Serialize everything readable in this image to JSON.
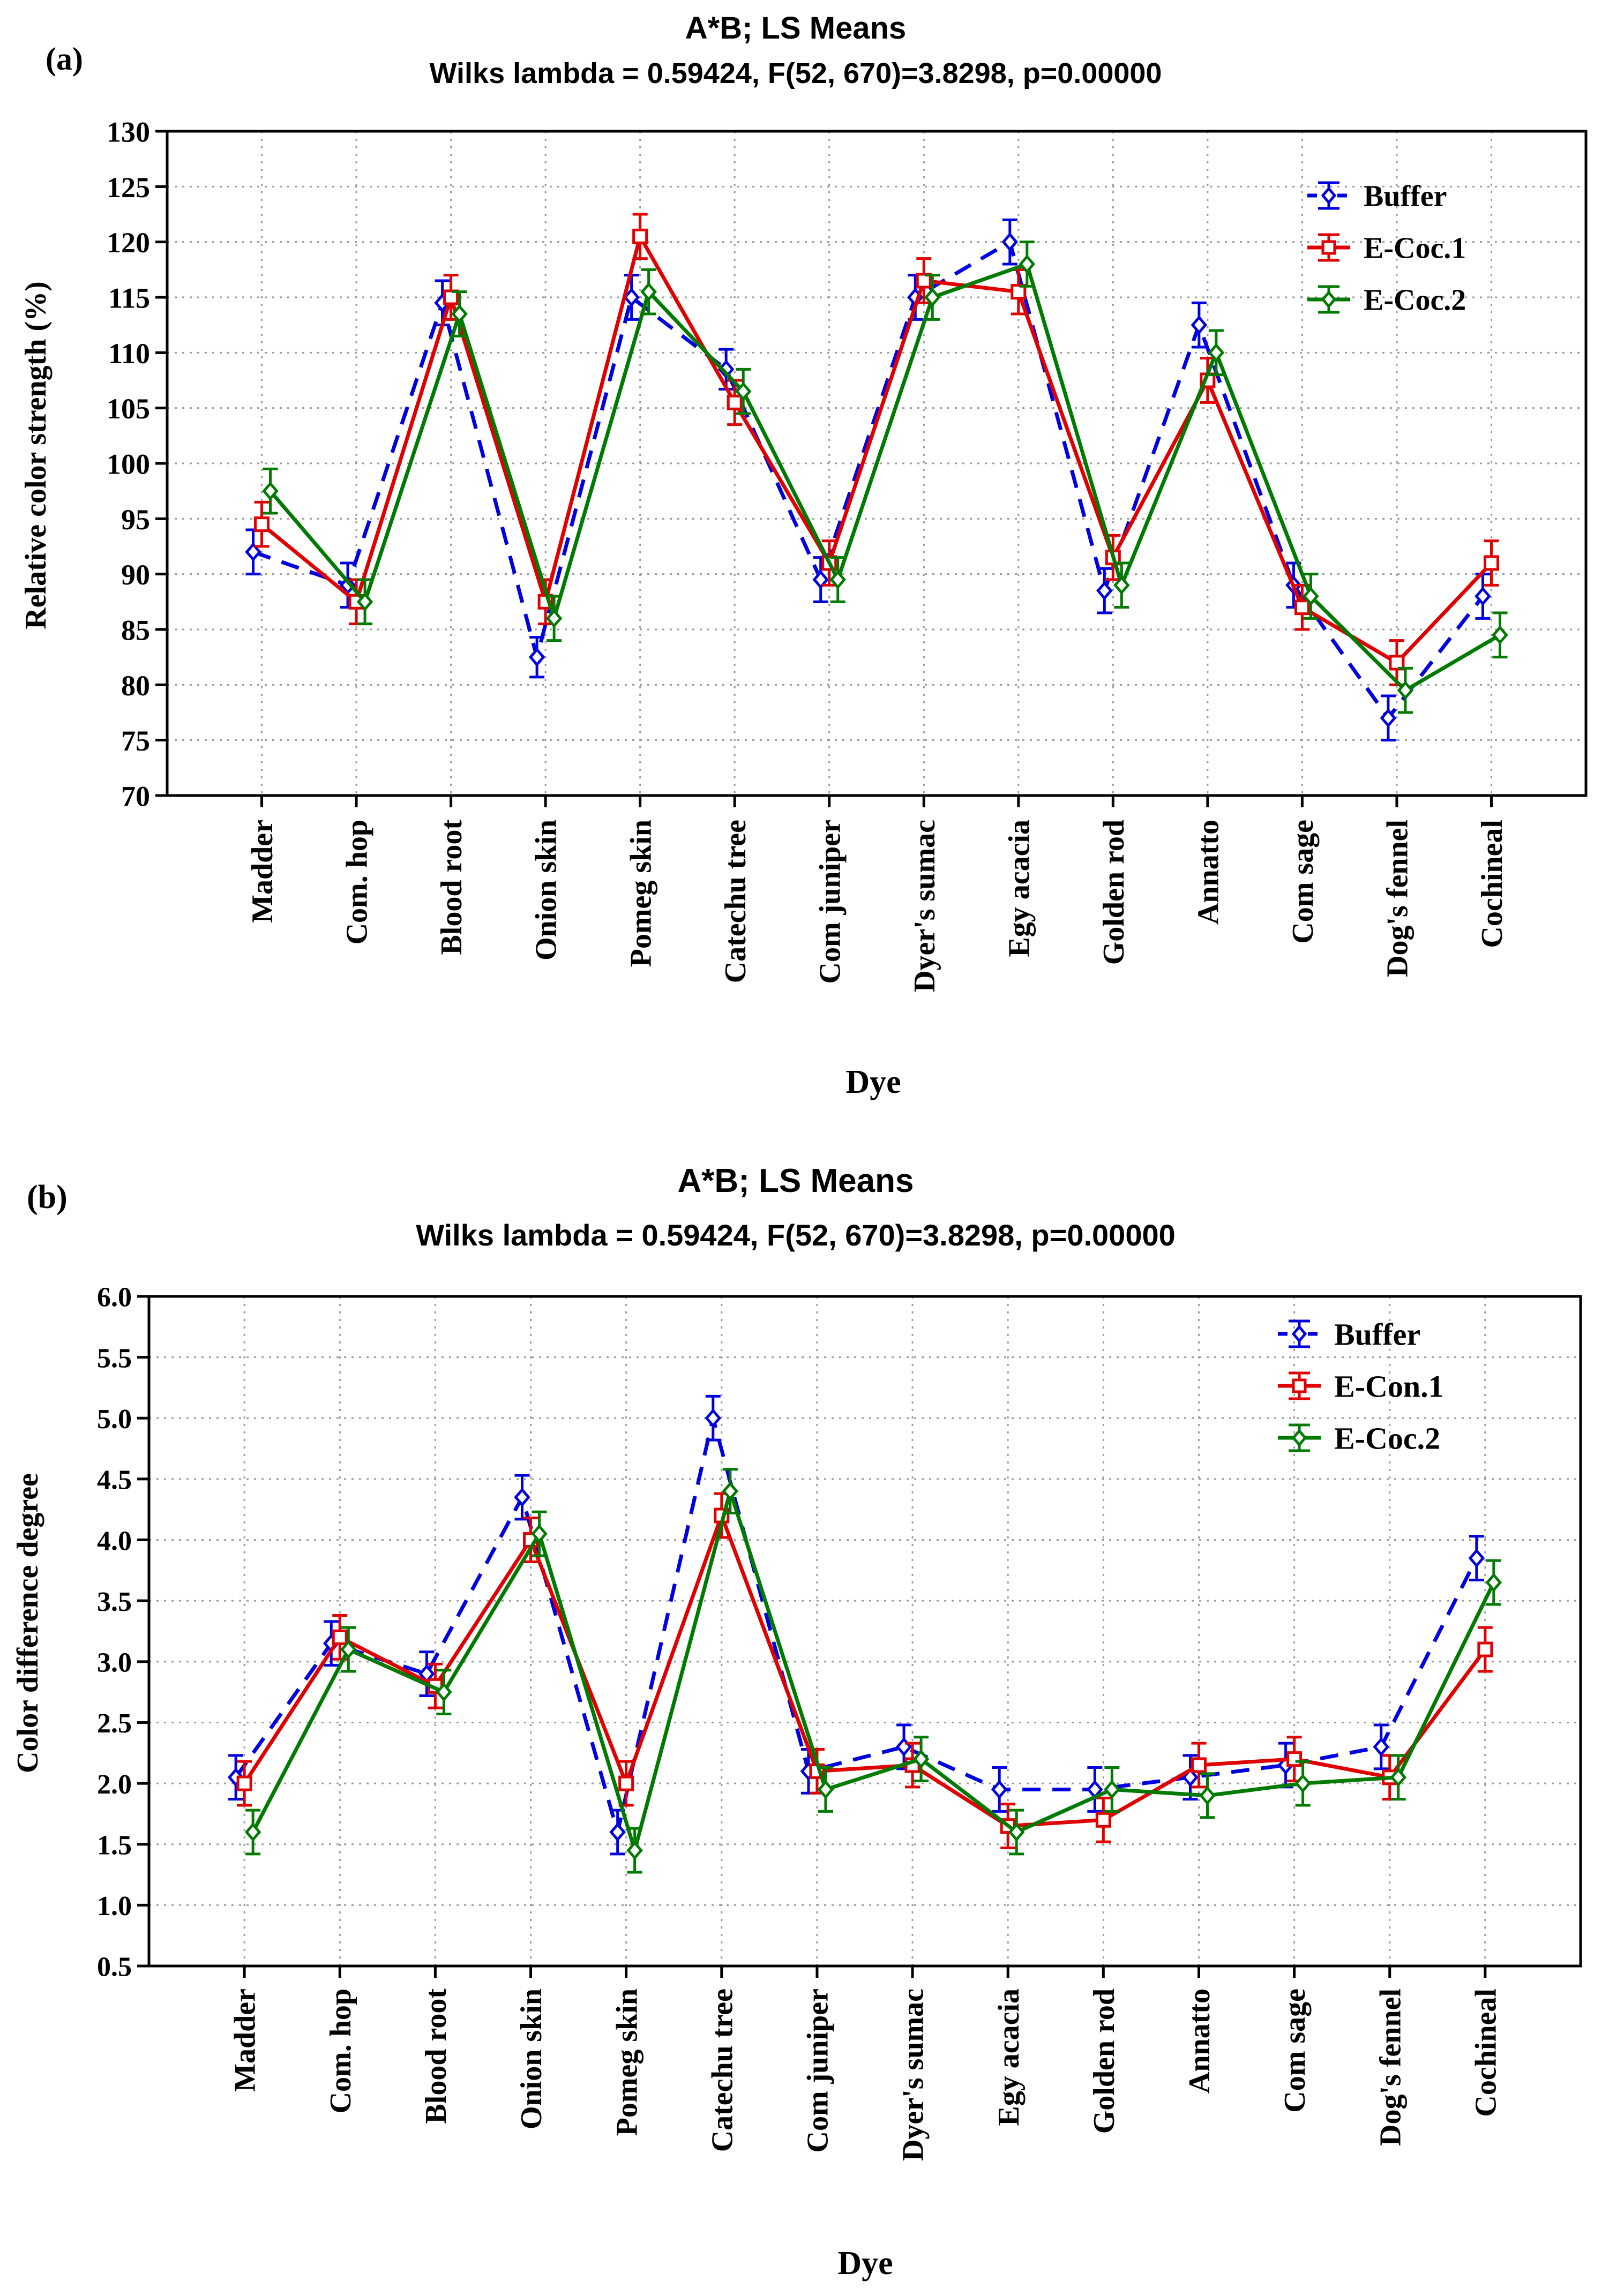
{
  "colors": {
    "buffer": "#0000e0",
    "e_coc1": "#e00000",
    "e_coc2": "#007a00",
    "grid": "#9a9a9a",
    "axis": "#000000"
  },
  "chart_data": [
    {
      "type": "line",
      "panel_label": "(a)",
      "title": "A*B; LS Means",
      "subtitle": "Wilks lambda = 0.59424, F(52, 670)=3.8298, p=0.00000",
      "xlabel": "Dye",
      "ylabel": "Relative color strength (%)",
      "ylim": [
        70,
        130
      ],
      "yticks": [
        70,
        75,
        80,
        85,
        90,
        95,
        100,
        105,
        110,
        115,
        120,
        125,
        130
      ],
      "yticklabels": [
        "70",
        "75",
        "80",
        "85",
        "90",
        "95",
        "100",
        "105",
        "110",
        "115",
        "120",
        "125",
        "130"
      ],
      "grid": true,
      "legend_position": "top-right",
      "categories": [
        "Madder",
        "Com. hop",
        "Blood root",
        "Onion skin",
        "Pomeg skin",
        "Catechu tree",
        "Com juniper",
        "Dyer's sumac",
        "Egy acacia",
        "Golden rod",
        "Annatto",
        "Com sage",
        "Dog's fennel",
        "Cochineal"
      ],
      "series": [
        {
          "name": "Buffer",
          "key": "buffer",
          "dash": true,
          "marker": "diamond",
          "values": [
            92,
            89,
            114.5,
            82.5,
            115,
            108.5,
            89.5,
            115,
            120,
            88.5,
            112.5,
            89,
            77,
            88
          ],
          "err": [
            2,
            2,
            2,
            1.8,
            2,
            1.8,
            2,
            2,
            2,
            2,
            2,
            2,
            2,
            2
          ]
        },
        {
          "name": "E-Coc.1",
          "key": "e_coc1",
          "dash": false,
          "marker": "square",
          "values": [
            94.5,
            87.5,
            115,
            87.5,
            120.5,
            105.5,
            91,
            116.5,
            115.5,
            91.5,
            107.5,
            87,
            82,
            91
          ],
          "err": [
            2,
            2,
            2,
            2,
            2,
            2,
            2,
            2,
            2,
            2,
            2,
            2,
            2,
            2
          ]
        },
        {
          "name": "E-Coc.2",
          "key": "e_coc2",
          "dash": false,
          "marker": "diamond",
          "values": [
            97.5,
            87.5,
            113.5,
            86,
            115.5,
            106.5,
            89.5,
            115,
            118,
            89,
            110,
            88,
            79.5,
            84.5
          ],
          "err": [
            2,
            2,
            2,
            2,
            2,
            2,
            2,
            2,
            2,
            2,
            2,
            2,
            2,
            2
          ]
        }
      ]
    },
    {
      "type": "line",
      "panel_label": "(b)",
      "title": "A*B; LS Means",
      "subtitle": "Wilks lambda = 0.59424, F(52, 670)=3.8298, p=0.00000",
      "xlabel": "Dye",
      "ylabel": "Color difference degree",
      "ylim": [
        0.5,
        6.0
      ],
      "yticks": [
        0.5,
        1.0,
        1.5,
        2.0,
        2.5,
        3.0,
        3.5,
        4.0,
        4.5,
        5.0,
        5.5,
        6.0
      ],
      "yticklabels": [
        "0.5",
        "1.0",
        "1.5",
        "2.0",
        "2.5",
        "3.0",
        "3.5",
        "4.0",
        "4.5",
        "5.0",
        "5.5",
        "6.0"
      ],
      "grid": true,
      "legend_position": "top-right",
      "categories": [
        "Madder",
        "Com. hop",
        "Blood root",
        "Onion skin",
        "Pomeg skin",
        "Catechu tree",
        "Com juniper",
        "Dyer's sumac",
        "Egy acacia",
        "Golden rod",
        "Annatto",
        "Com sage",
        "Dog's fennel",
        "Cochineal"
      ],
      "series": [
        {
          "name": "Buffer",
          "key": "buffer",
          "dash": true,
          "marker": "diamond",
          "values": [
            2.05,
            3.15,
            2.9,
            4.35,
            1.6,
            5.0,
            2.1,
            2.3,
            1.95,
            1.95,
            2.05,
            2.15,
            2.3,
            3.85
          ],
          "err": [
            0.18,
            0.18,
            0.18,
            0.18,
            0.18,
            0.18,
            0.18,
            0.18,
            0.18,
            0.18,
            0.18,
            0.18,
            0.18,
            0.18
          ]
        },
        {
          "name": "E-Con.1",
          "key": "e_coc1",
          "dash": false,
          "marker": "square",
          "values": [
            2.0,
            3.2,
            2.8,
            4.0,
            2.0,
            4.2,
            2.1,
            2.15,
            1.65,
            1.7,
            2.15,
            2.2,
            2.05,
            3.1
          ],
          "err": [
            0.18,
            0.18,
            0.18,
            0.18,
            0.18,
            0.18,
            0.18,
            0.18,
            0.18,
            0.18,
            0.18,
            0.18,
            0.18,
            0.18
          ]
        },
        {
          "name": "E-Coc.2",
          "key": "e_coc2",
          "dash": false,
          "marker": "diamond",
          "values": [
            1.6,
            3.1,
            2.75,
            4.05,
            1.45,
            4.4,
            1.95,
            2.2,
            1.6,
            1.95,
            1.9,
            2.0,
            2.05,
            3.65
          ],
          "err": [
            0.18,
            0.18,
            0.18,
            0.18,
            0.18,
            0.18,
            0.18,
            0.18,
            0.18,
            0.18,
            0.18,
            0.18,
            0.18,
            0.18
          ]
        }
      ]
    }
  ]
}
